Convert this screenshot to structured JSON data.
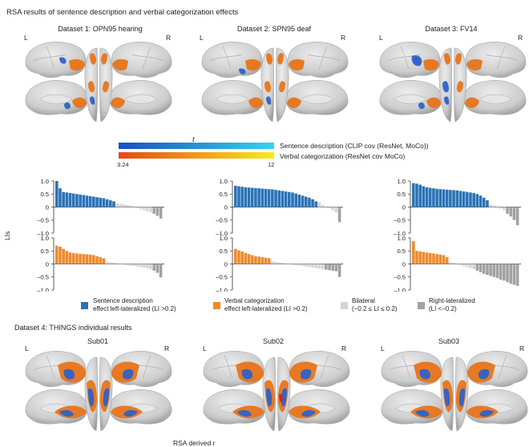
{
  "figure": {
    "title_top": "RSA results of sentence description and verbal categorization effects",
    "datasets": [
      {
        "label": "Dataset 1: OPN95 hearing",
        "left": "L",
        "right": "R"
      },
      {
        "label": "Dataset 2: SPN95 deaf",
        "left": "L",
        "right": "R"
      },
      {
        "label": "Dataset 3: FV14",
        "left": "L",
        "right": "R"
      }
    ],
    "colorbar": {
      "stat": "t",
      "min_label": "3.24",
      "max_label": "12",
      "sentence_label": "Sentence description (CLIP cov (ResNet, MoCo))",
      "verbal_label": "Verbal categorization (ResNet cov MoCo)",
      "sentence_colors": [
        "#1a4fbf",
        "#34d4ea"
      ],
      "verbal_colors": [
        "#e8471a",
        "#f6ec1a"
      ]
    },
    "legend": [
      {
        "line1": "Sentence description",
        "line2": "effect left-lateralized (LI >0.2)",
        "color": "#2a73b6"
      },
      {
        "line1": "Verbal categorization",
        "line2": "effect left-lateralized (LI >0.2)",
        "color": "#f08a2c"
      },
      {
        "line1": "Bilateral",
        "line2": "(−0.2 ≤ LI ≤ 0.2)",
        "color": "#d4d4d4"
      },
      {
        "line1": "Right-lateralized",
        "line2": "(LI <−0.2)",
        "color": "#a2a2a2"
      }
    ],
    "dataset4_title": "Dataset 4: THINGS individual results",
    "subjects": [
      {
        "label": "Sub01",
        "left": "L",
        "right": "R"
      },
      {
        "label": "Sub02",
        "left": "L",
        "right": "R"
      },
      {
        "label": "Sub03",
        "left": "L",
        "right": "R"
      }
    ],
    "bottom_cut_label": "RSA derived r"
  },
  "chart_data": [
    {
      "type": "bar",
      "panel": "Dataset 1 sentence description",
      "ylabel": "LIs",
      "ylim": [
        -1.0,
        1.0
      ],
      "yticks": [
        "1.0",
        "0.5",
        "0",
        "–0.5",
        "–1.0"
      ],
      "values": [
        1.0,
        0.72,
        0.58,
        0.56,
        0.54,
        0.52,
        0.5,
        0.48,
        0.46,
        0.44,
        0.42,
        0.4,
        0.38,
        0.36,
        0.34,
        0.3,
        0.26,
        0.22,
        0.14,
        0.12,
        0.1,
        0.08,
        0.06,
        0.02,
        -0.04,
        -0.08,
        -0.12,
        -0.16,
        -0.2,
        -0.26,
        -0.34,
        -0.44
      ]
    },
    {
      "type": "bar",
      "panel": "Dataset 1 verbal categorization",
      "ylim": [
        -1.0,
        1.0
      ],
      "yticks": [
        "1.0",
        "0.5",
        "0",
        "–0.5",
        "–1.0"
      ],
      "values": [
        0.7,
        0.66,
        0.58,
        0.5,
        0.44,
        0.42,
        0.4,
        0.39,
        0.38,
        0.37,
        0.36,
        0.34,
        0.3,
        0.26,
        0.22,
        0.08,
        0.06,
        0.04,
        0.02,
        0.0,
        -0.02,
        -0.04,
        -0.06,
        -0.08,
        -0.1,
        -0.12,
        -0.14,
        -0.16,
        -0.2,
        -0.26,
        -0.34,
        -0.52
      ]
    },
    {
      "type": "bar",
      "panel": "Dataset 2 sentence description",
      "ylim": [
        -1.0,
        1.0
      ],
      "yticks": [
        "1.0",
        "0.5",
        "0",
        "–0.5",
        "–1.0"
      ],
      "values": [
        0.82,
        0.8,
        0.78,
        0.76,
        0.75,
        0.74,
        0.73,
        0.72,
        0.71,
        0.7,
        0.69,
        0.68,
        0.66,
        0.64,
        0.62,
        0.6,
        0.58,
        0.56,
        0.52,
        0.48,
        0.44,
        0.4,
        0.36,
        0.3,
        0.22,
        0.18,
        0.08,
        0.02,
        -0.04,
        -0.12,
        -0.2,
        -0.58
      ]
    },
    {
      "type": "bar",
      "panel": "Dataset 2 verbal categorization",
      "ylim": [
        -1.0,
        1.0
      ],
      "yticks": [
        "1.0",
        "0.5",
        "0",
        "–0.5",
        "–1.0"
      ],
      "values": [
        0.58,
        0.52,
        0.48,
        0.42,
        0.38,
        0.34,
        0.3,
        0.28,
        0.26,
        0.24,
        0.22,
        0.1,
        0.08,
        0.06,
        0.04,
        0.02,
        0.0,
        -0.02,
        -0.04,
        -0.06,
        -0.08,
        -0.1,
        -0.12,
        -0.14,
        -0.16,
        -0.18,
        -0.2,
        -0.22,
        -0.24,
        -0.26,
        -0.28,
        -0.5
      ]
    },
    {
      "type": "bar",
      "panel": "Dataset 3 sentence description",
      "ylim": [
        -1.0,
        1.0
      ],
      "yticks": [
        "1.0",
        "0.5",
        "0",
        "–0.5",
        "–1.0"
      ],
      "values": [
        0.92,
        0.9,
        0.86,
        0.8,
        0.76,
        0.74,
        0.72,
        0.7,
        0.69,
        0.68,
        0.67,
        0.66,
        0.65,
        0.64,
        0.62,
        0.6,
        0.58,
        0.56,
        0.54,
        0.5,
        0.44,
        0.36,
        0.26,
        0.1,
        0.06,
        0.02,
        -0.06,
        -0.12,
        -0.26,
        -0.36,
        -0.5,
        -0.7
      ]
    },
    {
      "type": "bar",
      "panel": "Dataset 3 verbal categorization",
      "ylim": [
        -1.0,
        1.0
      ],
      "yticks": [
        "1.0",
        "0.5",
        "0",
        "–0.5",
        "–1.0"
      ],
      "values": [
        0.88,
        0.5,
        0.48,
        0.46,
        0.44,
        0.42,
        0.4,
        0.38,
        0.36,
        0.34,
        0.26,
        0.06,
        0.04,
        0.0,
        -0.04,
        -0.08,
        -0.12,
        -0.16,
        -0.2,
        -0.26,
        -0.32,
        -0.38,
        -0.42,
        -0.46,
        -0.5,
        -0.54,
        -0.6,
        -0.64,
        -0.7,
        -0.76,
        -0.8,
        -0.84
      ]
    }
  ]
}
